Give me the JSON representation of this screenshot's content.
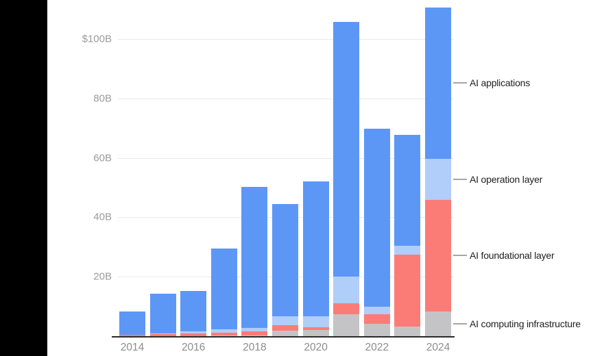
{
  "chart_data": {
    "type": "bar",
    "stacked": true,
    "title": "",
    "xlabel": "",
    "ylabel": "",
    "categories": [
      "2014",
      "2015",
      "2016",
      "2017",
      "2018",
      "2019",
      "2020",
      "2021",
      "2022",
      "2023",
      "2024"
    ],
    "series": [
      {
        "name": "AI computing infrastructure",
        "color": "#c4c4c6",
        "values": [
          0.1,
          0.1,
          0.1,
          0.2,
          0.2,
          1.8,
          2.1,
          7.3,
          4.2,
          3.3,
          8.3
        ]
      },
      {
        "name": "AI foundational layer",
        "color": "#fb7c77",
        "values": [
          0.4,
          0.7,
          0.8,
          1.0,
          1.3,
          1.9,
          1.0,
          3.7,
          3.1,
          24.2,
          37.6
        ]
      },
      {
        "name": "AI operation layer",
        "color": "#b1cdf9",
        "values": [
          0.0,
          0.1,
          0.7,
          1.2,
          1.2,
          2.9,
          3.5,
          9.0,
          2.6,
          2.9,
          13.8
        ]
      },
      {
        "name": "AI applications",
        "color": "#5d97f6",
        "values": [
          7.8,
          13.3,
          13.6,
          27.0,
          47.5,
          37.9,
          45.5,
          85.8,
          59.9,
          37.3,
          50.9
        ]
      }
    ],
    "totals": [
      8.3,
      14.2,
      15.2,
      29.4,
      50.2,
      44.5,
      52.1,
      105.8,
      69.8,
      67.7,
      110.6
    ],
    "ylim": [
      0,
      113
    ],
    "grid": true,
    "legend_position": "right-annotations",
    "y_axis": {
      "ticks": [
        {
          "label": "$100B",
          "value": 100
        },
        {
          "label": "80B",
          "value": 80
        },
        {
          "label": "60B",
          "value": 60
        },
        {
          "label": "40B",
          "value": 40
        },
        {
          "label": "20B",
          "value": 20
        }
      ]
    },
    "x_axis": {
      "tick_labels": [
        "2014",
        "2016",
        "2018",
        "2020",
        "2022",
        "2024"
      ],
      "tick_every": 2
    },
    "annotations": [
      {
        "label": "AI applications",
        "series": "AI applications"
      },
      {
        "label": "AI operation layer",
        "series": "AI operation layer"
      },
      {
        "label": "AI foundational layer",
        "series": "AI foundational layer"
      },
      {
        "label": "AI computing infrastructure",
        "series": "AI computing infrastructure"
      }
    ]
  },
  "colors": {
    "applications": "#5d97f6",
    "operation": "#b1cdf9",
    "foundational": "#fb7c77",
    "infrastructure": "#c4c4c6",
    "gridline": "#eaeaea",
    "axis_line": "#2a2a2a",
    "y_tick_text": "#9b9b9b",
    "x_tick_text": "#8c8c8c",
    "annotation_text": "#1e1e1e",
    "left_strip": "#000000"
  }
}
